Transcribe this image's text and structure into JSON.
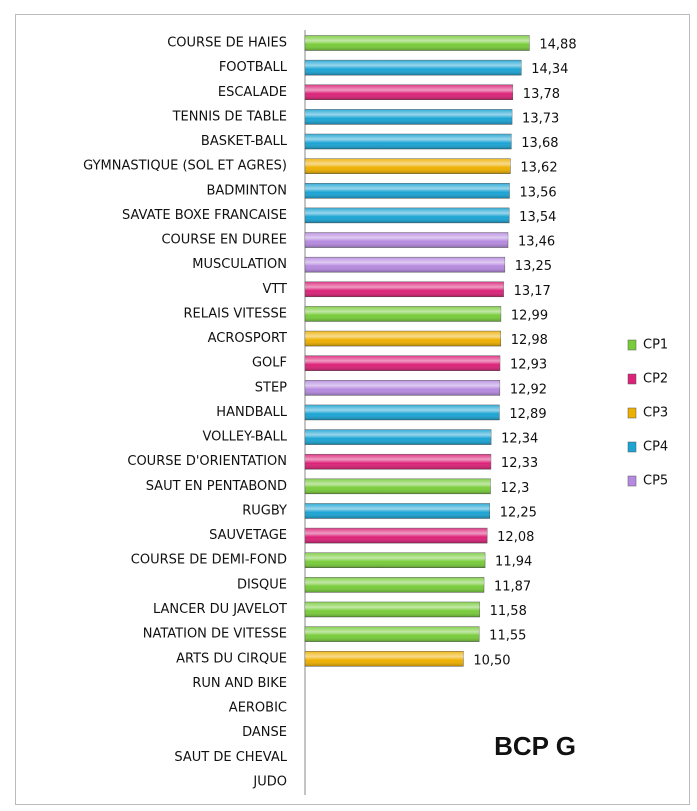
{
  "chart_data": {
    "type": "bar",
    "orientation": "horizontal",
    "annotation": "BCP G",
    "categories": [
      "COURSE DE HAIES",
      "FOOTBALL",
      "ESCALADE",
      "TENNIS DE TABLE",
      "BASKET-BALL",
      "GYMNASTIQUE (SOL ET AGRES)",
      "BADMINTON",
      "SAVATE BOXE FRANCAISE",
      "COURSE EN DUREE",
      "MUSCULATION",
      "VTT",
      "RELAIS VITESSE",
      "ACROSPORT",
      "GOLF",
      "STEP",
      "HANDBALL",
      "VOLLEY-BALL",
      "COURSE D'ORIENTATION",
      "SAUT EN PENTABOND",
      "RUGBY",
      "SAUVETAGE",
      "COURSE DE DEMI-FOND",
      "DISQUE",
      "LANCER DU JAVELOT",
      "NATATION DE VITESSE",
      "ARTS DU CIRQUE",
      "RUN AND BIKE",
      "AEROBIC",
      "DANSE",
      "SAUT DE CHEVAL",
      "JUDO"
    ],
    "xlim": [
      0,
      25
    ],
    "legend": "right",
    "series": [
      {
        "name": "CP1",
        "color": "#78cc3a",
        "values": [
          14.88,
          null,
          null,
          null,
          null,
          null,
          null,
          null,
          null,
          null,
          null,
          12.99,
          null,
          null,
          null,
          null,
          null,
          null,
          12.3,
          null,
          null,
          11.94,
          11.87,
          11.58,
          11.55,
          null,
          null,
          null,
          null,
          null,
          null
        ],
        "value_labels": [
          "14,88",
          null,
          null,
          null,
          null,
          null,
          null,
          null,
          null,
          null,
          null,
          "12,99",
          null,
          null,
          null,
          null,
          null,
          null,
          "12,3",
          null,
          null,
          "11,94",
          "11,87",
          "11,58",
          "11,55",
          null,
          null,
          null,
          null,
          null,
          null
        ]
      },
      {
        "name": "CP2",
        "color": "#dc2379",
        "values": [
          null,
          null,
          13.78,
          null,
          null,
          null,
          null,
          null,
          null,
          null,
          13.17,
          null,
          null,
          12.93,
          null,
          null,
          null,
          12.33,
          null,
          null,
          12.08,
          null,
          null,
          null,
          null,
          null,
          null,
          null,
          null,
          null,
          null
        ],
        "value_labels": [
          null,
          null,
          "13,78",
          null,
          null,
          null,
          null,
          null,
          null,
          null,
          "13,17",
          null,
          null,
          "12,93",
          null,
          null,
          null,
          "12,33",
          null,
          null,
          "12,08",
          null,
          null,
          null,
          null,
          null,
          null,
          null,
          null,
          null,
          null
        ]
      },
      {
        "name": "CP3",
        "color": "#eeb000",
        "values": [
          null,
          null,
          null,
          null,
          null,
          13.62,
          null,
          null,
          null,
          null,
          null,
          null,
          12.98,
          null,
          null,
          null,
          null,
          null,
          null,
          null,
          null,
          null,
          null,
          null,
          null,
          10.5,
          null,
          null,
          null,
          null,
          null
        ],
        "value_labels": [
          null,
          null,
          null,
          null,
          null,
          "13,62",
          null,
          null,
          null,
          null,
          null,
          null,
          "12,98",
          null,
          null,
          null,
          null,
          null,
          null,
          null,
          null,
          null,
          null,
          null,
          null,
          "10,50",
          null,
          null,
          null,
          null,
          null
        ]
      },
      {
        "name": "CP4",
        "color": "#1ba4d4",
        "values": [
          null,
          14.34,
          null,
          13.73,
          13.68,
          null,
          13.56,
          13.54,
          null,
          null,
          null,
          null,
          null,
          null,
          null,
          12.89,
          12.34,
          null,
          null,
          12.25,
          null,
          null,
          null,
          null,
          null,
          null,
          null,
          null,
          null,
          null,
          null
        ],
        "value_labels": [
          null,
          "14,34",
          null,
          "13,73",
          "13,68",
          null,
          "13,56",
          "13,54",
          null,
          null,
          null,
          null,
          null,
          null,
          null,
          "12,89",
          "12,34",
          null,
          null,
          "12,25",
          null,
          null,
          null,
          null,
          null,
          null,
          null,
          null,
          null,
          null,
          null
        ]
      },
      {
        "name": "CP5",
        "color": "#b68ae0",
        "values": [
          null,
          null,
          null,
          null,
          null,
          null,
          null,
          null,
          13.46,
          13.25,
          null,
          null,
          null,
          null,
          12.92,
          null,
          null,
          null,
          null,
          null,
          null,
          null,
          null,
          null,
          null,
          null,
          null,
          null,
          null,
          null,
          null
        ],
        "value_labels": [
          null,
          null,
          null,
          null,
          null,
          null,
          null,
          null,
          "13,46",
          "13,25",
          null,
          null,
          null,
          null,
          "12,92",
          null,
          null,
          null,
          null,
          null,
          null,
          null,
          null,
          null,
          null,
          null,
          null,
          null,
          null,
          null,
          null
        ]
      }
    ]
  }
}
